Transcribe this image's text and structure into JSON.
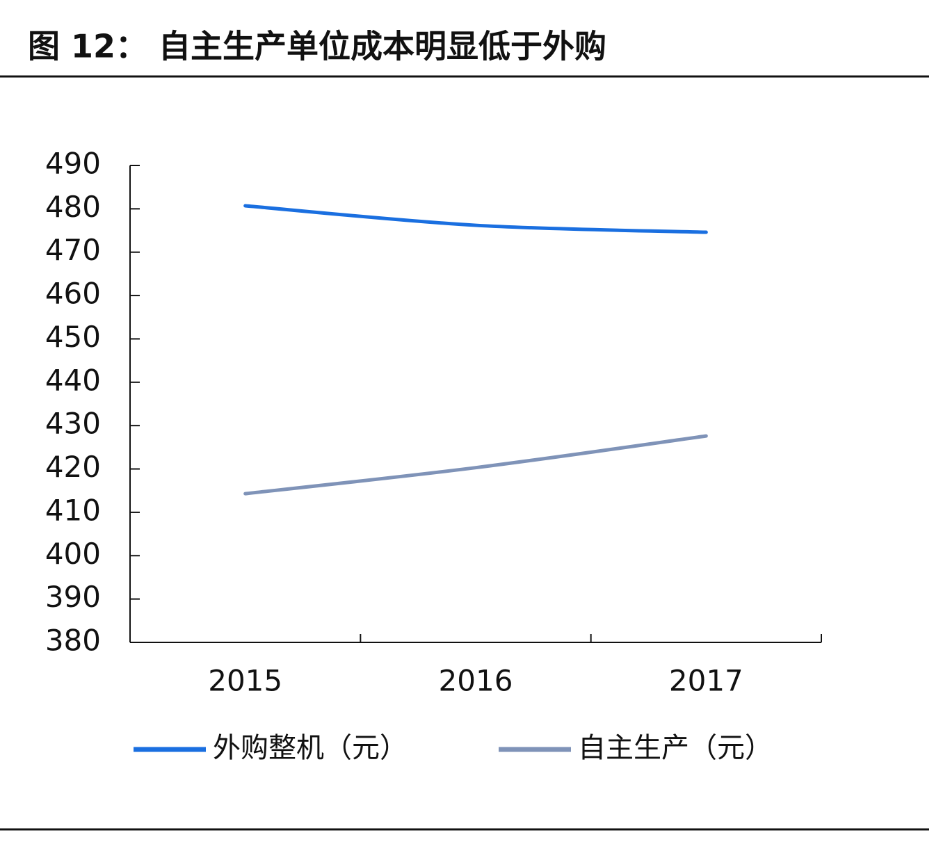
{
  "chart_data": {
    "type": "line",
    "title": "图 12：  自主生产单位成本明显低于外购",
    "categories": [
      "2015",
      "2016",
      "2017"
    ],
    "series": [
      {
        "name": "外购整机（元）",
        "color": "#1a6fe0",
        "values": [
          480.7,
          476.2,
          474.6
        ]
      },
      {
        "name": "自主生产（元）",
        "color": "#7f93b8",
        "values": [
          414.3,
          420.3,
          427.6
        ]
      }
    ],
    "ylim": [
      380,
      490
    ],
    "yticks": [
      380,
      390,
      400,
      410,
      420,
      430,
      440,
      450,
      460,
      470,
      480,
      490
    ],
    "grid": false,
    "legend": "bottom"
  }
}
